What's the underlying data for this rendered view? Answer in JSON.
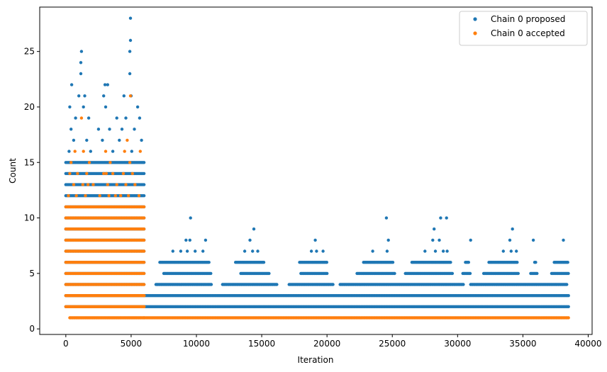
{
  "chart_data": {
    "type": "scatter",
    "xlabel": "Iteration",
    "ylabel": "Count",
    "xlim": [
      -2000,
      40300
    ],
    "ylim": [
      -0.5,
      29
    ],
    "x_ticks": [
      0,
      5000,
      10000,
      15000,
      20000,
      25000,
      30000,
      35000,
      40000
    ],
    "x_tick_labels": [
      "0",
      "5000",
      "10000",
      "15000",
      "20000",
      "25000",
      "30000",
      "35000",
      "40000"
    ],
    "y_ticks": [
      0,
      5,
      10,
      15,
      20,
      25
    ],
    "y_tick_labels": [
      "0",
      "5",
      "10",
      "15",
      "20",
      "25"
    ],
    "grid": false,
    "legend_position": "top-right",
    "marker": "dot",
    "series": [
      {
        "name": "Chain 0 proposed",
        "color": "#1f77b4",
        "bands": [
          {
            "x_start": 0,
            "x_end": 6000,
            "y_min": 2,
            "y_max": 15
          },
          {
            "x_start": 6000,
            "x_end": 38500,
            "y_min": 2,
            "y_max": 3
          }
        ],
        "points": [
          {
            "x": 4950,
            "y": 28
          },
          {
            "x": 4950,
            "y": 26
          },
          {
            "x": 4900,
            "y": 25
          },
          {
            "x": 1200,
            "y": 25
          },
          {
            "x": 1150,
            "y": 24
          },
          {
            "x": 1150,
            "y": 23
          },
          {
            "x": 4900,
            "y": 23
          },
          {
            "x": 450,
            "y": 22
          },
          {
            "x": 3000,
            "y": 22
          },
          {
            "x": 3200,
            "y": 22
          },
          {
            "x": 1000,
            "y": 21
          },
          {
            "x": 1450,
            "y": 21
          },
          {
            "x": 2900,
            "y": 21
          },
          {
            "x": 4450,
            "y": 21
          },
          {
            "x": 5000,
            "y": 21
          },
          {
            "x": 300,
            "y": 20
          },
          {
            "x": 1350,
            "y": 20
          },
          {
            "x": 3050,
            "y": 20
          },
          {
            "x": 5500,
            "y": 20
          },
          {
            "x": 750,
            "y": 19
          },
          {
            "x": 1750,
            "y": 19
          },
          {
            "x": 3900,
            "y": 19
          },
          {
            "x": 4600,
            "y": 19
          },
          {
            "x": 5650,
            "y": 19
          },
          {
            "x": 400,
            "y": 18
          },
          {
            "x": 2500,
            "y": 18
          },
          {
            "x": 3350,
            "y": 18
          },
          {
            "x": 4300,
            "y": 18
          },
          {
            "x": 5250,
            "y": 18
          },
          {
            "x": 600,
            "y": 17
          },
          {
            "x": 1600,
            "y": 17
          },
          {
            "x": 2800,
            "y": 17
          },
          {
            "x": 4100,
            "y": 17
          },
          {
            "x": 5800,
            "y": 17
          },
          {
            "x": 250,
            "y": 16
          },
          {
            "x": 1900,
            "y": 16
          },
          {
            "x": 3600,
            "y": 16
          },
          {
            "x": 5050,
            "y": 16
          },
          {
            "x": 9550,
            "y": 10
          },
          {
            "x": 24550,
            "y": 10
          },
          {
            "x": 28700,
            "y": 10
          },
          {
            "x": 29150,
            "y": 10
          },
          {
            "x": 14400,
            "y": 9
          },
          {
            "x": 28200,
            "y": 9
          },
          {
            "x": 34200,
            "y": 9
          },
          {
            "x": 9200,
            "y": 8
          },
          {
            "x": 9500,
            "y": 8
          },
          {
            "x": 10700,
            "y": 8
          },
          {
            "x": 14100,
            "y": 8
          },
          {
            "x": 19100,
            "y": 8
          },
          {
            "x": 24700,
            "y": 8
          },
          {
            "x": 28100,
            "y": 8
          },
          {
            "x": 28600,
            "y": 8
          },
          {
            "x": 31000,
            "y": 8
          },
          {
            "x": 34000,
            "y": 8
          },
          {
            "x": 35800,
            "y": 8
          },
          {
            "x": 38100,
            "y": 8
          },
          {
            "x": 8200,
            "y": 7
          },
          {
            "x": 8800,
            "y": 7
          },
          {
            "x": 9300,
            "y": 7
          },
          {
            "x": 9900,
            "y": 7
          },
          {
            "x": 10500,
            "y": 7
          },
          {
            "x": 13700,
            "y": 7
          },
          {
            "x": 14300,
            "y": 7
          },
          {
            "x": 14700,
            "y": 7
          },
          {
            "x": 18800,
            "y": 7
          },
          {
            "x": 19200,
            "y": 7
          },
          {
            "x": 19700,
            "y": 7
          },
          {
            "x": 23500,
            "y": 7
          },
          {
            "x": 24600,
            "y": 7
          },
          {
            "x": 27500,
            "y": 7
          },
          {
            "x": 28300,
            "y": 7
          },
          {
            "x": 28900,
            "y": 7
          },
          {
            "x": 29200,
            "y": 7
          },
          {
            "x": 33500,
            "y": 7
          },
          {
            "x": 34100,
            "y": 7
          },
          {
            "x": 34500,
            "y": 7
          }
        ],
        "sparse_rows": [
          {
            "y": 6,
            "ranges": [
              [
                7200,
                11000
              ],
              [
                13000,
                15200
              ],
              [
                17900,
                20000
              ],
              [
                22800,
                25100
              ],
              [
                26500,
                29500
              ],
              [
                30600,
                30900
              ],
              [
                32400,
                34600
              ],
              [
                35900,
                36000
              ],
              [
                37400,
                38500
              ]
            ]
          },
          {
            "y": 5,
            "ranges": [
              [
                7500,
                11100
              ],
              [
                13400,
                15600
              ],
              [
                18000,
                20000
              ],
              [
                22300,
                25200
              ],
              [
                26000,
                29600
              ],
              [
                30400,
                31000
              ],
              [
                32000,
                34700
              ],
              [
                35600,
                36100
              ],
              [
                37200,
                38500
              ]
            ]
          },
          {
            "y": 4,
            "ranges": [
              [
                6900,
                11200
              ],
              [
                12000,
                16200
              ],
              [
                17100,
                20500
              ],
              [
                21000,
                30500
              ],
              [
                31000,
                38400
              ]
            ]
          }
        ]
      },
      {
        "name": "Chain 0 accepted",
        "color": "#ff7f0e",
        "bands": [
          {
            "x_start": 0,
            "x_end": 6000,
            "y_min": 4,
            "y_max": 11
          },
          {
            "x_start": 6000,
            "x_end": 38500,
            "y_min": 1,
            "y_max": 1
          }
        ],
        "points": [
          {
            "x": 4950,
            "y": 21
          },
          {
            "x": 1200,
            "y": 19
          },
          {
            "x": 4700,
            "y": 17
          },
          {
            "x": 700,
            "y": 16
          },
          {
            "x": 1350,
            "y": 16
          },
          {
            "x": 3050,
            "y": 16
          },
          {
            "x": 4500,
            "y": 16
          },
          {
            "x": 5700,
            "y": 16
          },
          {
            "x": 400,
            "y": 15
          },
          {
            "x": 1800,
            "y": 15
          },
          {
            "x": 3400,
            "y": 15
          },
          {
            "x": 4900,
            "y": 15
          },
          {
            "x": 300,
            "y": 14
          },
          {
            "x": 900,
            "y": 14
          },
          {
            "x": 1600,
            "y": 14
          },
          {
            "x": 2900,
            "y": 14
          },
          {
            "x": 3100,
            "y": 14
          },
          {
            "x": 3600,
            "y": 14
          },
          {
            "x": 4400,
            "y": 14
          },
          {
            "x": 5100,
            "y": 14
          },
          {
            "x": 600,
            "y": 13
          },
          {
            "x": 1300,
            "y": 13
          },
          {
            "x": 1700,
            "y": 13
          },
          {
            "x": 2100,
            "y": 13
          },
          {
            "x": 3200,
            "y": 13
          },
          {
            "x": 3900,
            "y": 13
          },
          {
            "x": 4600,
            "y": 13
          },
          {
            "x": 5300,
            "y": 13
          },
          {
            "x": 200,
            "y": 12
          },
          {
            "x": 800,
            "y": 12
          },
          {
            "x": 1500,
            "y": 12
          },
          {
            "x": 2600,
            "y": 12
          },
          {
            "x": 3300,
            "y": 12
          },
          {
            "x": 3800,
            "y": 12
          },
          {
            "x": 4200,
            "y": 12
          },
          {
            "x": 4800,
            "y": 12
          },
          {
            "x": 5600,
            "y": 12
          }
        ],
        "sparse_rows": [
          {
            "y": 3,
            "ranges": [
              [
                0,
                6000
              ]
            ]
          },
          {
            "y": 2,
            "ranges": [
              [
                0,
                6000
              ]
            ]
          },
          {
            "y": 1,
            "ranges": [
              [
                300,
                6000
              ]
            ]
          }
        ]
      }
    ]
  }
}
